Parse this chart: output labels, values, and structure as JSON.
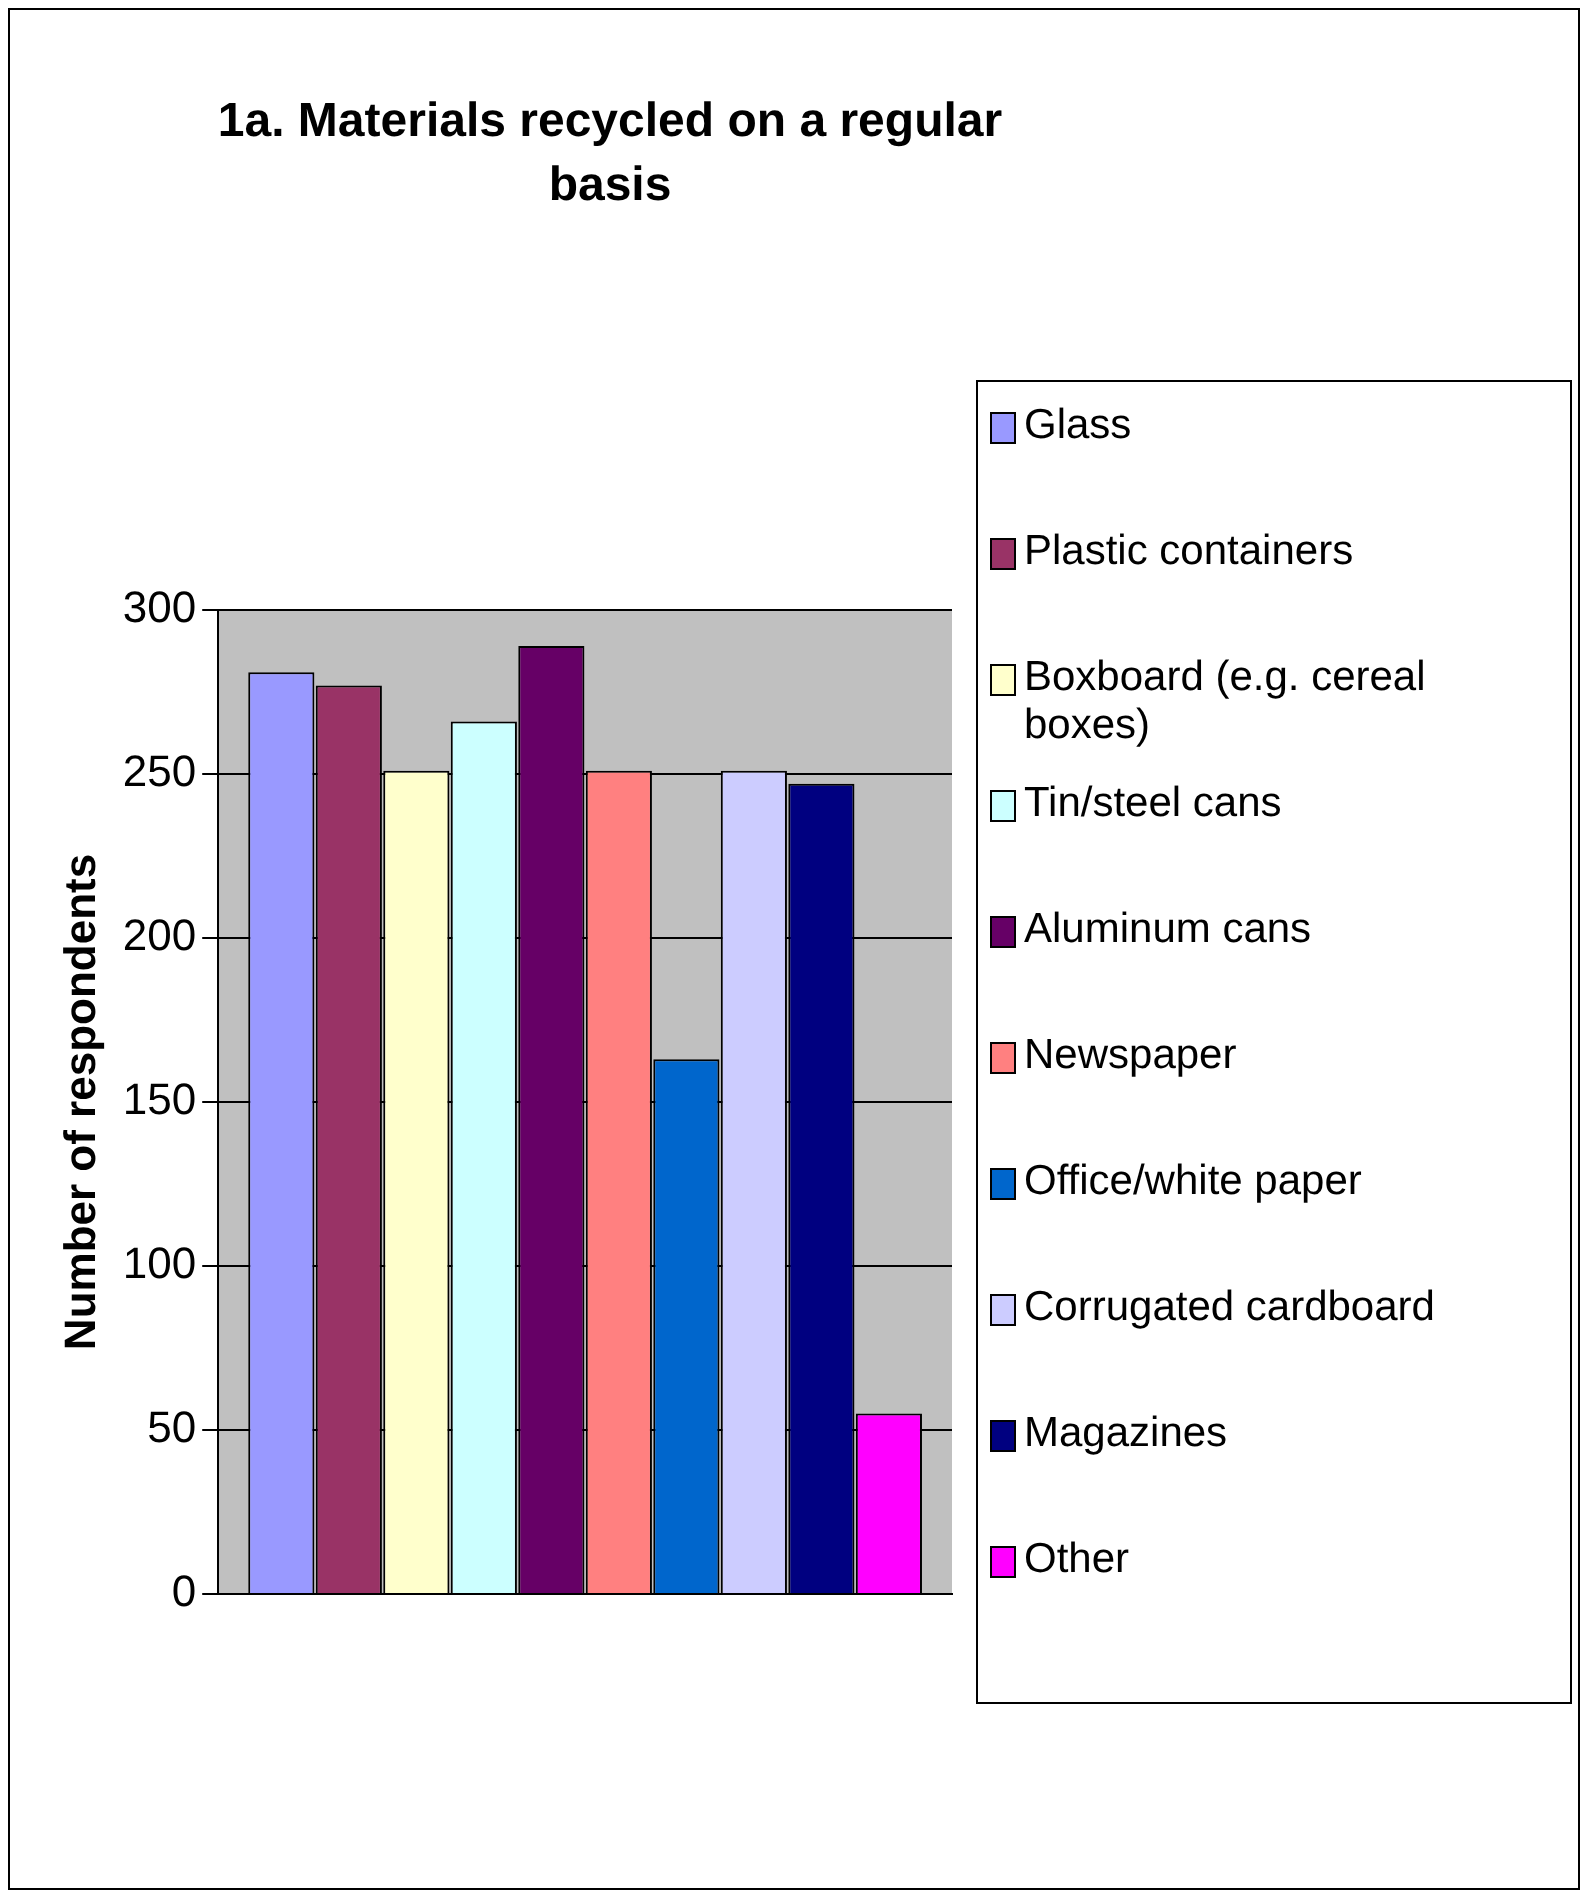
{
  "chart_data": {
    "type": "bar",
    "title": "1a. Materials recycled on a regular basis",
    "ylabel": "Number of respondents",
    "categories": [
      null
    ],
    "series": [
      {
        "name": "Glass",
        "color": "#9999ff",
        "values": [
          281
        ]
      },
      {
        "name": "Plastic containers",
        "color": "#993366",
        "values": [
          277
        ]
      },
      {
        "name": "Boxboard (e.g. cereal boxes)",
        "color": "#ffffcc",
        "values": [
          251
        ]
      },
      {
        "name": "Tin/steel cans",
        "color": "#ccffff",
        "values": [
          266
        ]
      },
      {
        "name": "Aluminum cans",
        "color": "#660066",
        "values": [
          289
        ]
      },
      {
        "name": "Newspaper",
        "color": "#ff8080",
        "values": [
          251
        ]
      },
      {
        "name": "Office/white paper",
        "color": "#0066cc",
        "values": [
          163
        ]
      },
      {
        "name": "Corrugated cardboard",
        "color": "#ccccff",
        "values": [
          251
        ]
      },
      {
        "name": "Magazines",
        "color": "#000080",
        "values": [
          247
        ]
      },
      {
        "name": "Other",
        "color": "#ff00ff",
        "values": [
          55
        ]
      }
    ],
    "ylim": [
      0,
      300
    ],
    "yticks": [
      0,
      50,
      100,
      150,
      200,
      250,
      300
    ],
    "grid": "y",
    "legend": "right"
  }
}
